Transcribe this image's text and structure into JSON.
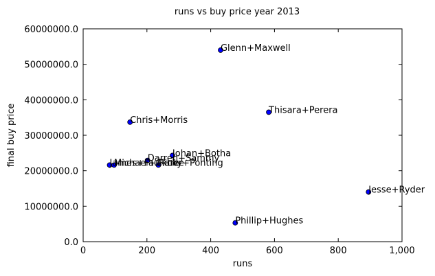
{
  "chart_data": {
    "type": "scatter",
    "title": "runs vs buy price year 2013",
    "xlabel": "runs",
    "ylabel": "final buy price",
    "xlim": [
      0,
      1000
    ],
    "ylim": [
      0,
      60000000
    ],
    "xticks": [
      0,
      200,
      400,
      600,
      800,
      1000
    ],
    "xtick_labels": [
      "0",
      "200",
      "400",
      "600",
      "800",
      "1,000"
    ],
    "yticks": [
      0,
      10000000,
      20000000,
      30000000,
      40000000,
      50000000,
      60000000
    ],
    "ytick_labels": [
      "0.0",
      "10000000.0",
      "20000000.0",
      "30000000.0",
      "40000000.0",
      "50000000.0",
      "60000000.0"
    ],
    "grid": false,
    "marker_color": "#0000ff",
    "points": [
      {
        "label": "Glenn+Maxwell",
        "x": 431,
        "y": 54000000
      },
      {
        "label": "Thisara+Perera",
        "x": 582,
        "y": 36500000
      },
      {
        "label": "Chris+Morris",
        "x": 147,
        "y": 33700000
      },
      {
        "label": "Johan+Botha",
        "x": 280,
        "y": 24300000
      },
      {
        "label": "Darren+Sammy",
        "x": 202,
        "y": 22900000
      },
      {
        "label": "James+Faulkner",
        "x": 83,
        "y": 21600000
      },
      {
        "label": "Michael+Clarke",
        "x": 97,
        "y": 21600000
      },
      {
        "label": "Ricky+Ponting",
        "x": 236,
        "y": 21600000
      },
      {
        "label": "Jesse+Ryder",
        "x": 895,
        "y": 14000000
      },
      {
        "label": "Phillip+Hughes",
        "x": 477,
        "y": 5300000
      }
    ]
  }
}
